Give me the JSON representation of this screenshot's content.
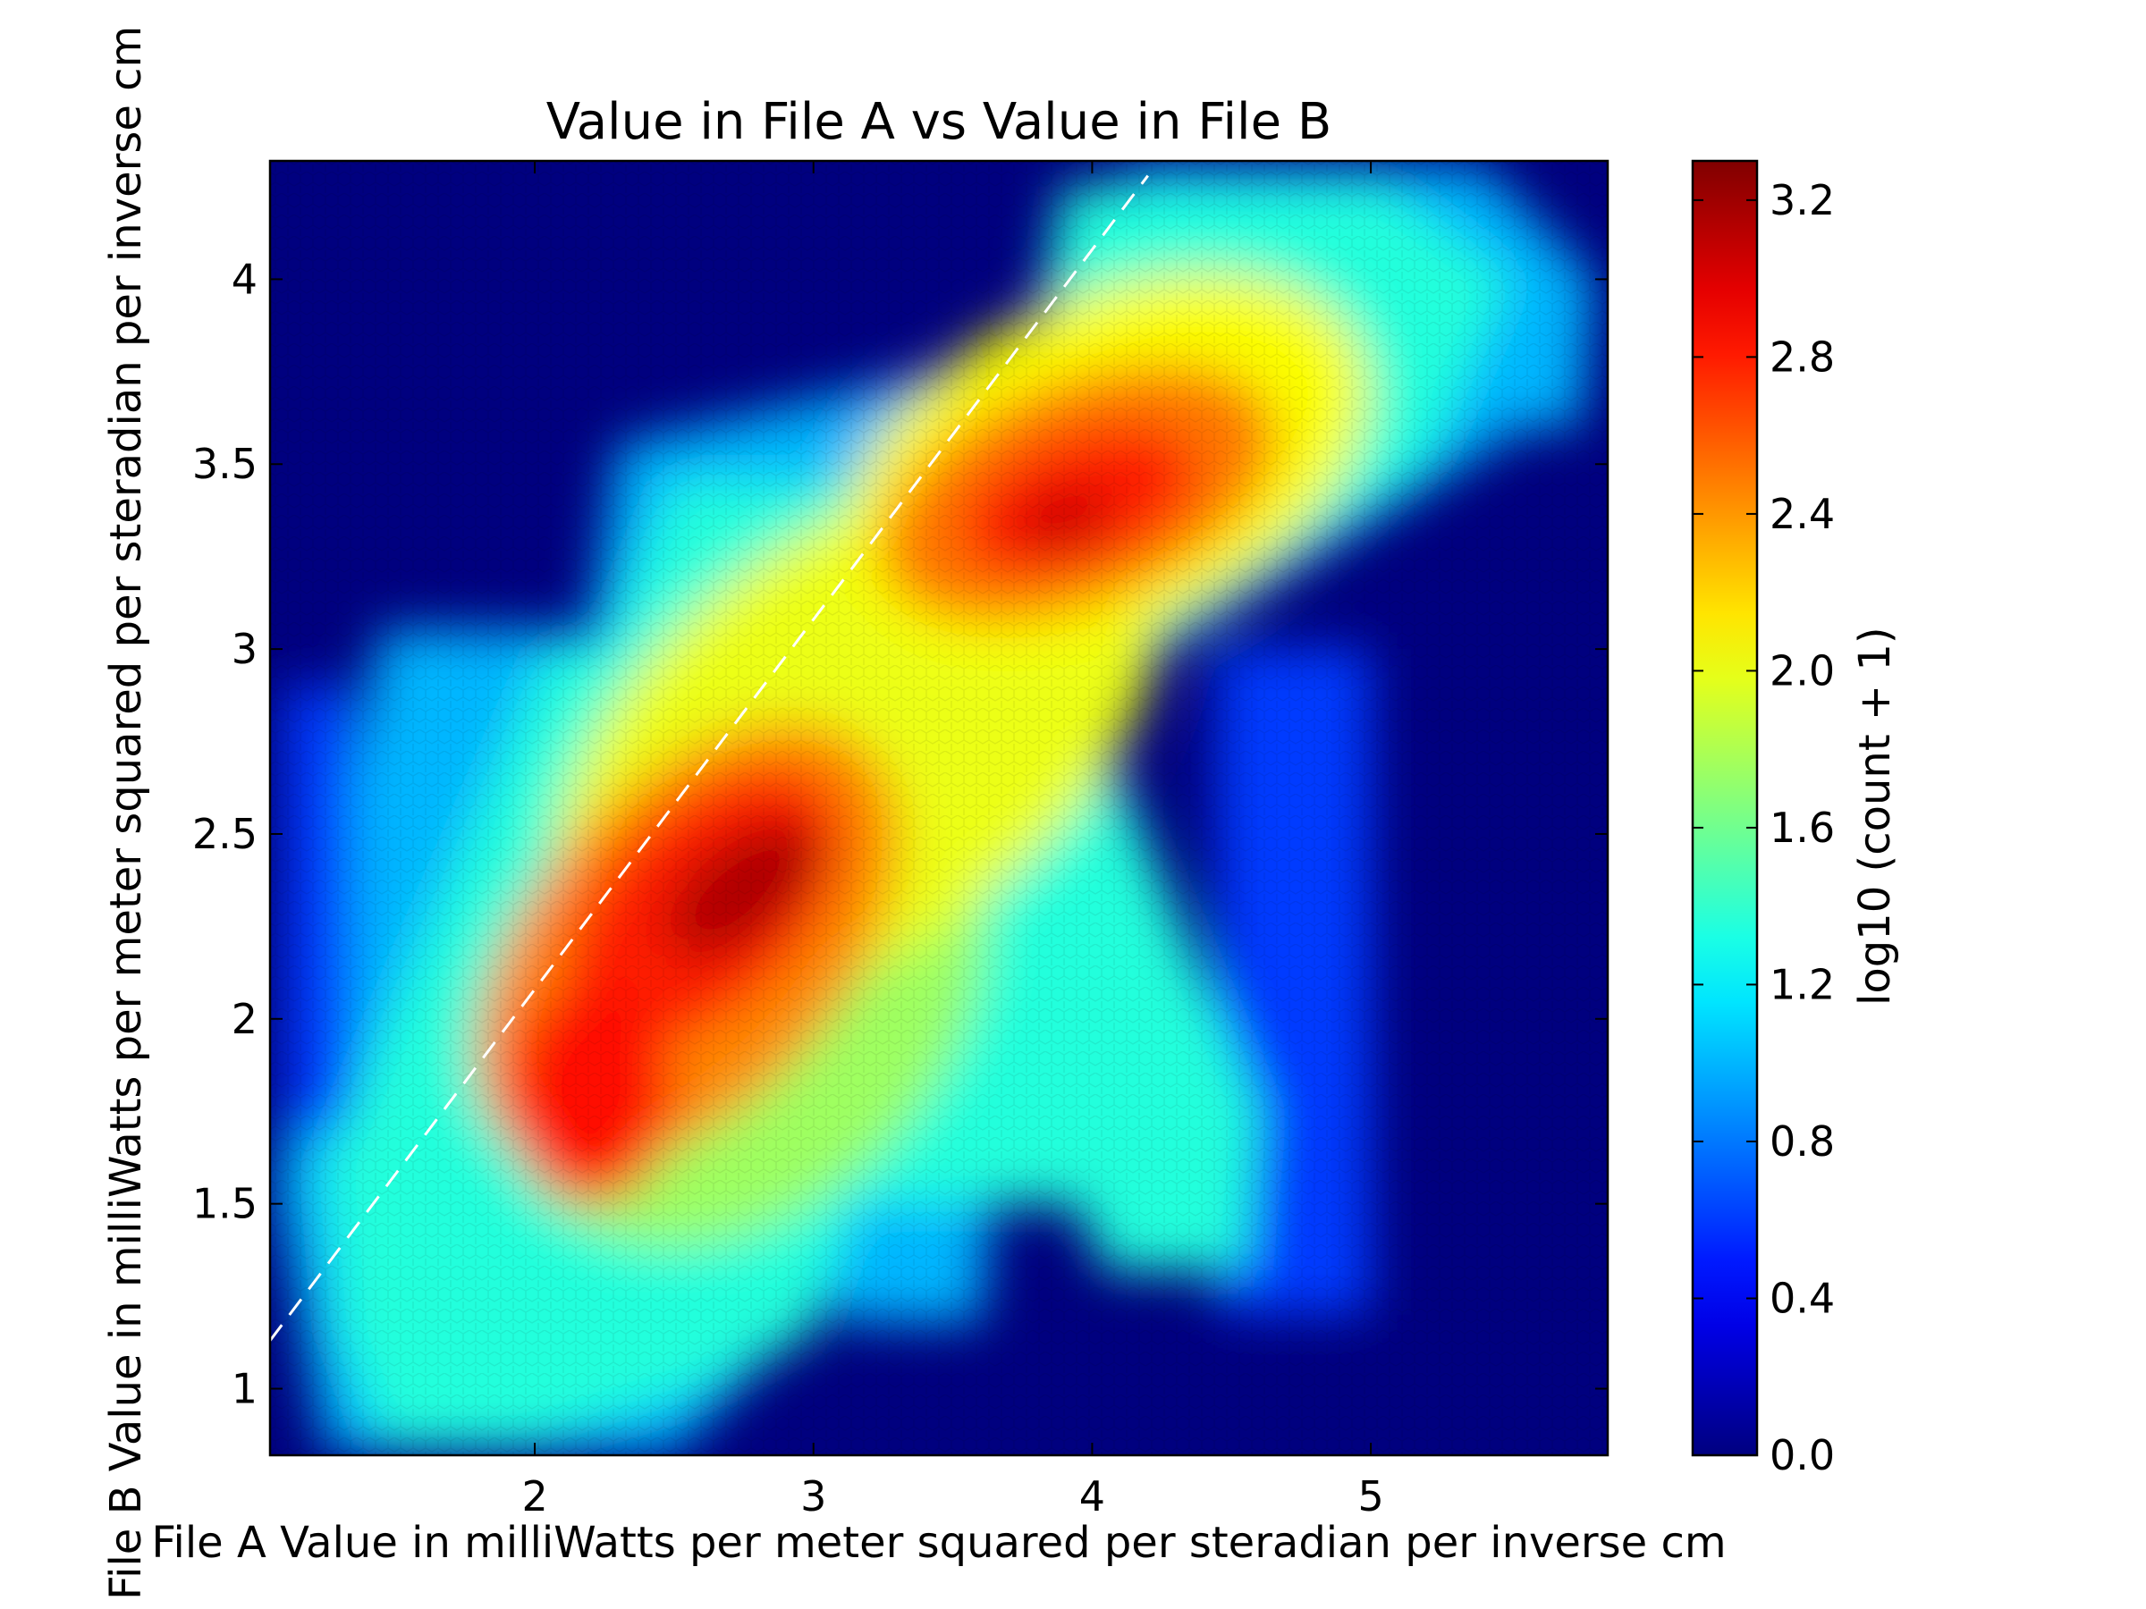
{
  "chart_data": {
    "type": "heatmap",
    "subtype": "hexbin",
    "title": "Value in File A vs Value in File B",
    "xlabel": "File A Value in milliWatts per meter squared per steradian per inverse cm",
    "ylabel": "File B Value in milliWatts per meter squared per steradian per inverse cm",
    "colorbar_label": "log10 (count + 1)",
    "colormap": "jet",
    "xlim": [
      1.05,
      5.85
    ],
    "ylim": [
      0.82,
      4.32
    ],
    "clim": [
      0.0,
      3.3
    ],
    "xticks": [
      2,
      3,
      4,
      5
    ],
    "xtick_labels": [
      "2",
      "3",
      "4",
      "5"
    ],
    "yticks": [
      1,
      1.5,
      2,
      2.5,
      3,
      3.5,
      4
    ],
    "ytick_labels": [
      "1",
      "1.5",
      "2",
      "2.5",
      "3",
      "3.5",
      "4"
    ],
    "cticks": [
      0.0,
      0.4,
      0.8,
      1.2,
      1.6,
      2.0,
      2.4,
      2.8,
      3.2
    ],
    "ctick_labels": [
      "0.0",
      "0.4",
      "0.8",
      "1.2",
      "1.6",
      "2.0",
      "2.4",
      "2.8",
      "3.2"
    ],
    "background_color": "#00007f",
    "reference_line": {
      "style": "dashed",
      "color": "#ffffff",
      "x": [
        1.05,
        4.2
      ],
      "y": [
        1.13,
        4.28
      ]
    },
    "density_regions": [
      {
        "shape": "polygon",
        "level": 1.0,
        "x": [
          1.07,
          1.45,
          2.2,
          2.3,
          3.75,
          4.15,
          5.4,
          5.8,
          5.75,
          5.55,
          4.25,
          3.8,
          3.6,
          3.12,
          3.05,
          2.5,
          2.12,
          1.25,
          1.07
        ],
        "y": [
          1.55,
          3.05,
          3.05,
          3.55,
          3.8,
          4.3,
          4.3,
          4.0,
          3.6,
          3.6,
          3.0,
          3.0,
          1.18,
          1.18,
          1.25,
          0.83,
          0.83,
          0.83,
          1.55
        ]
      },
      {
        "shape": "polygon",
        "level": 0.6,
        "x": [
          4.45,
          5.0,
          5.0,
          4.45
        ],
        "y": [
          1.2,
          1.2,
          3.0,
          3.0
        ]
      },
      {
        "shape": "polygon",
        "level": 0.6,
        "x": [
          1.1,
          1.35,
          1.35,
          1.1
        ],
        "y": [
          1.7,
          1.7,
          2.9,
          2.9
        ]
      },
      {
        "shape": "polygon",
        "level": 1.35,
        "x": [
          1.25,
          2.05,
          2.25,
          2.5,
          3.45,
          3.8,
          3.9,
          5.05,
          5.5,
          5.2,
          4.25,
          3.9,
          4.6,
          4.55,
          4.05,
          3.95,
          3.15,
          3.0,
          2.6,
          1.95,
          1.45,
          1.3
        ],
        "y": [
          1.6,
          3.0,
          3.0,
          3.45,
          3.45,
          3.85,
          4.25,
          4.25,
          4.0,
          3.5,
          3.0,
          3.0,
          1.75,
          1.32,
          1.32,
          1.5,
          1.5,
          1.15,
          1.0,
          0.85,
          0.85,
          1.15
        ]
      },
      {
        "shape": "ellipse",
        "level": 1.75,
        "cx": 2.75,
        "cy": 2.05,
        "rx": 1.0,
        "ry": 0.55,
        "angle_deg": 47
      },
      {
        "shape": "ellipse",
        "level": 2.0,
        "cx": 3.15,
        "cy": 2.75,
        "rx": 1.25,
        "ry": 0.55,
        "angle_deg": 37
      },
      {
        "shape": "ellipse",
        "level": 2.05,
        "cx": 4.05,
        "cy": 3.5,
        "rx": 1.0,
        "ry": 0.45,
        "angle_deg": 25
      },
      {
        "shape": "ellipse",
        "level": 2.45,
        "cx": 2.55,
        "cy": 2.2,
        "rx": 0.95,
        "ry": 0.42,
        "angle_deg": 48
      },
      {
        "shape": "ellipse",
        "level": 2.5,
        "cx": 3.95,
        "cy": 3.42,
        "rx": 0.75,
        "ry": 0.3,
        "angle_deg": 22
      },
      {
        "shape": "ellipse",
        "level": 2.8,
        "cx": 2.6,
        "cy": 2.3,
        "rx": 0.62,
        "ry": 0.27,
        "angle_deg": 45
      },
      {
        "shape": "ellipse",
        "level": 2.85,
        "cx": 2.2,
        "cy": 1.8,
        "rx": 0.3,
        "ry": 0.3,
        "angle_deg": 0
      },
      {
        "shape": "ellipse",
        "level": 2.8,
        "cx": 3.95,
        "cy": 3.4,
        "rx": 0.45,
        "ry": 0.18,
        "angle_deg": 20
      },
      {
        "shape": "ellipse",
        "level": 3.15,
        "cx": 2.75,
        "cy": 2.35,
        "rx": 0.33,
        "ry": 0.13,
        "angle_deg": 38
      },
      {
        "shape": "ellipse",
        "level": 3.05,
        "cx": 3.9,
        "cy": 3.35,
        "rx": 0.18,
        "ry": 0.08,
        "angle_deg": 15
      }
    ]
  }
}
